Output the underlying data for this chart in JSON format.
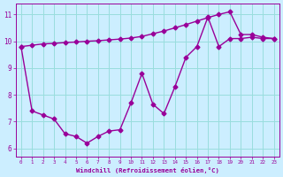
{
  "background_color": "#cceeff",
  "grid_color": "#99dddd",
  "line_color": "#990099",
  "xlim": [
    -0.5,
    23.5
  ],
  "ylim": [
    5.7,
    11.4
  ],
  "yticks": [
    6,
    7,
    8,
    9,
    10,
    11
  ],
  "xticks": [
    0,
    1,
    2,
    3,
    4,
    5,
    6,
    7,
    8,
    9,
    10,
    11,
    12,
    13,
    14,
    15,
    16,
    17,
    18,
    19,
    20,
    21,
    22,
    23
  ],
  "xlabel": "Windchill (Refroidissement éolien,°C)",
  "line1_x": [
    0,
    1,
    2,
    3,
    4,
    5,
    6,
    7,
    8,
    9,
    10,
    11,
    12,
    13,
    14,
    15,
    16,
    17,
    18,
    19,
    20,
    21,
    22,
    23
  ],
  "line1_y": [
    9.8,
    9.85,
    9.9,
    9.92,
    9.95,
    9.97,
    10.0,
    10.02,
    10.05,
    10.08,
    10.12,
    10.18,
    10.28,
    10.38,
    10.5,
    10.62,
    10.75,
    10.88,
    11.0,
    11.1,
    10.25,
    10.25,
    10.15,
    10.1
  ],
  "line2_x": [
    0,
    1,
    2,
    3,
    4,
    5,
    6,
    7,
    8,
    9,
    10,
    11,
    12,
    13,
    14,
    15,
    16,
    17,
    18,
    19,
    20,
    21,
    22,
    23
  ],
  "line2_y": [
    9.8,
    7.4,
    7.25,
    7.1,
    6.55,
    6.45,
    6.2,
    6.45,
    6.65,
    6.7,
    7.7,
    8.8,
    7.65,
    7.3,
    8.3,
    9.4,
    9.8,
    10.9,
    9.8,
    10.1,
    10.1,
    10.15,
    10.1,
    10.1
  ],
  "marker": "D",
  "marker_size": 2.5,
  "linewidth": 1.0
}
